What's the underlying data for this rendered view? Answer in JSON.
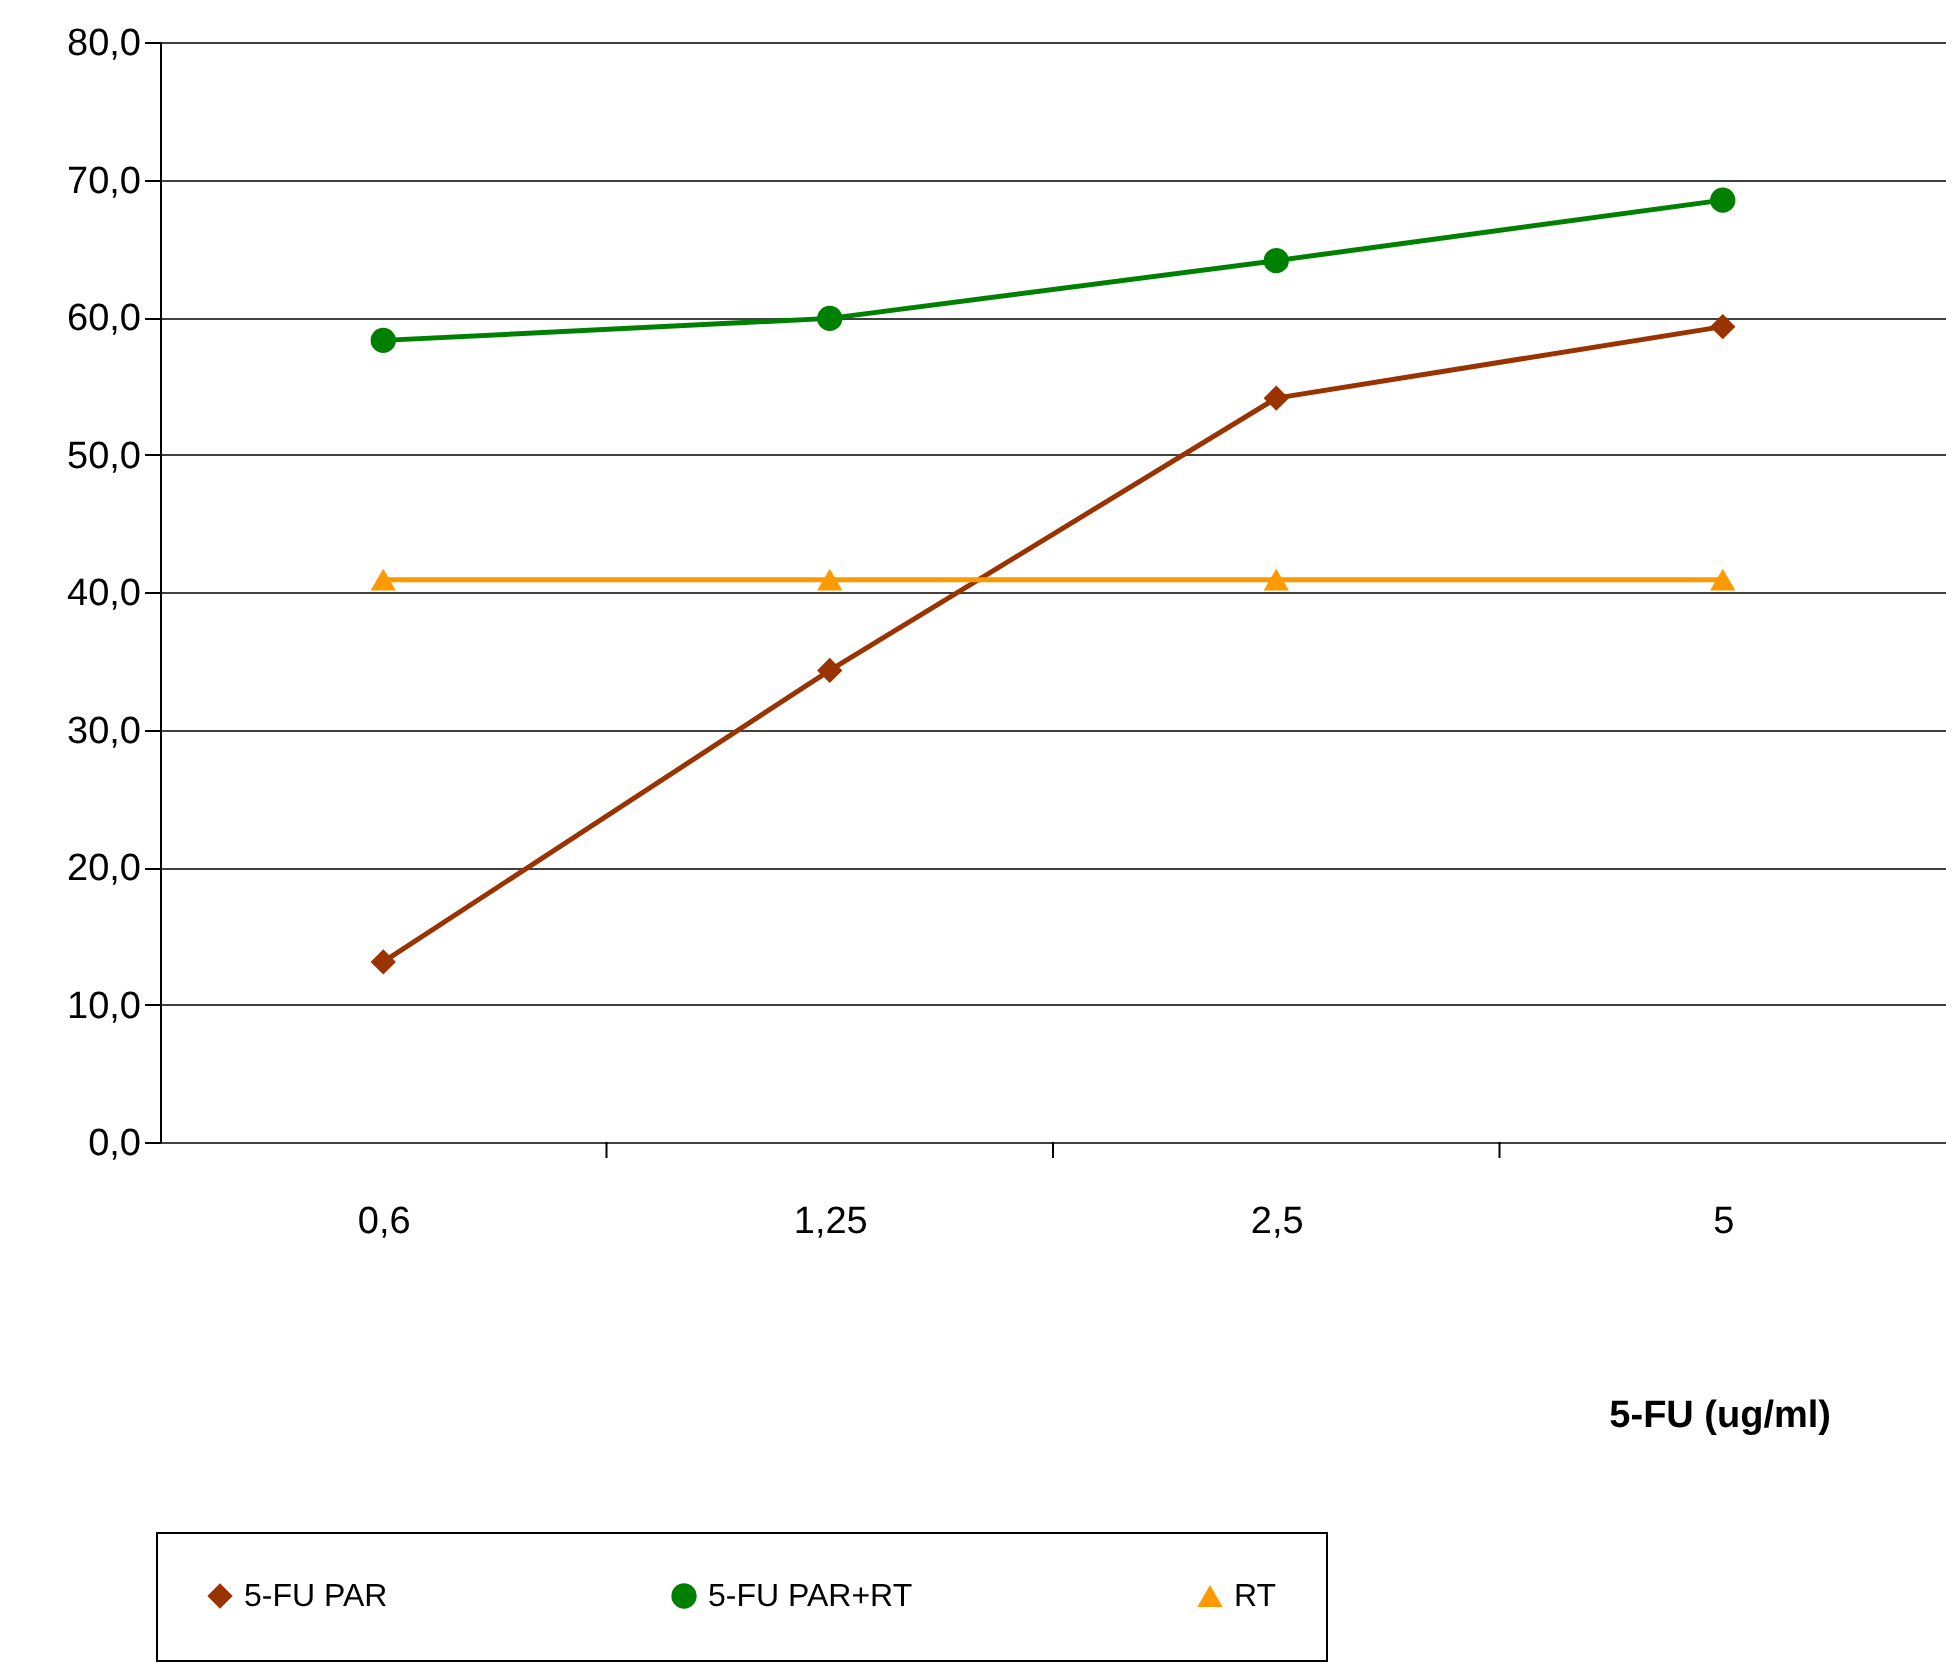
{
  "chart_data": {
    "type": "line",
    "xlabel": "5-FU (ug/ml)",
    "categories": [
      "0,6",
      "1,25",
      "2,5",
      "5"
    ],
    "series": [
      {
        "name": "5-FU PAR",
        "color": "#993300",
        "marker": "diamond",
        "values": [
          13.1,
          34.3,
          54.1,
          59.3
        ]
      },
      {
        "name": "5-FU PAR+RT",
        "color": "#008000",
        "marker": "circle",
        "values": [
          58.3,
          59.9,
          64.1,
          68.5
        ]
      },
      {
        "name": "RT",
        "color": "#ff9900",
        "marker": "triangle",
        "values": [
          40.9,
          40.9,
          40.9,
          40.9
        ]
      }
    ],
    "ylim": [
      0,
      80
    ],
    "yticks": [
      {
        "value": 0,
        "label": "0,0"
      },
      {
        "value": 10,
        "label": "10,0"
      },
      {
        "value": 20,
        "label": "20,0"
      },
      {
        "value": 30,
        "label": "30,0"
      },
      {
        "value": 40,
        "label": "40,0"
      },
      {
        "value": 50,
        "label": "50,0"
      },
      {
        "value": 60,
        "label": "60,0"
      },
      {
        "value": 70,
        "label": "70,0"
      },
      {
        "value": 80,
        "label": "80,0"
      }
    ],
    "grid": "y",
    "legend": "bottom",
    "line_style": "solid"
  }
}
